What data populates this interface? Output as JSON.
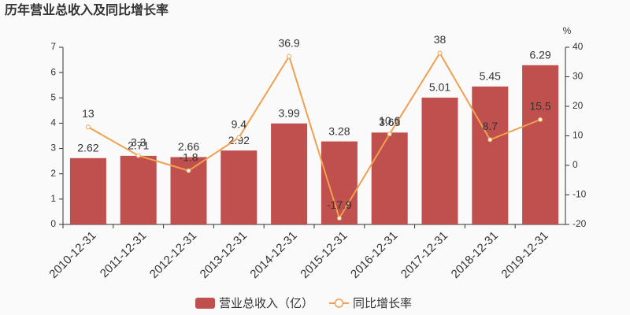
{
  "chart_data": {
    "type": "bar_line",
    "title": "历年营业总收入及同比增长率",
    "categories": [
      "2010-12-31",
      "2011-12-31",
      "2012-12-31",
      "2013-12-31",
      "2014-12-31",
      "2015-12-31",
      "2016-12-31",
      "2017-12-31",
      "2018-12-31",
      "2019-12-31"
    ],
    "series": [
      {
        "name": "营业总收入（亿）",
        "type": "bar",
        "color": "#c0504d",
        "values": [
          2.62,
          2.71,
          2.66,
          2.92,
          3.99,
          3.28,
          3.63,
          5.01,
          5.45,
          6.29
        ]
      },
      {
        "name": "同比增长率",
        "type": "line",
        "axis": "y2",
        "color": "#f0a050",
        "values": [
          13,
          3.3,
          -1.8,
          9.4,
          36.9,
          -17.9,
          10.6,
          38,
          8.7,
          15.5
        ]
      }
    ],
    "ylim": [
      0,
      7
    ],
    "yticks": [
      0,
      1,
      2,
      3,
      4,
      5,
      6,
      7
    ],
    "y2lim": [
      -20,
      40
    ],
    "y2ticks": [
      -20,
      -10,
      0,
      10,
      20,
      30,
      40
    ],
    "y2_unit": "%",
    "legend": "bottom"
  }
}
